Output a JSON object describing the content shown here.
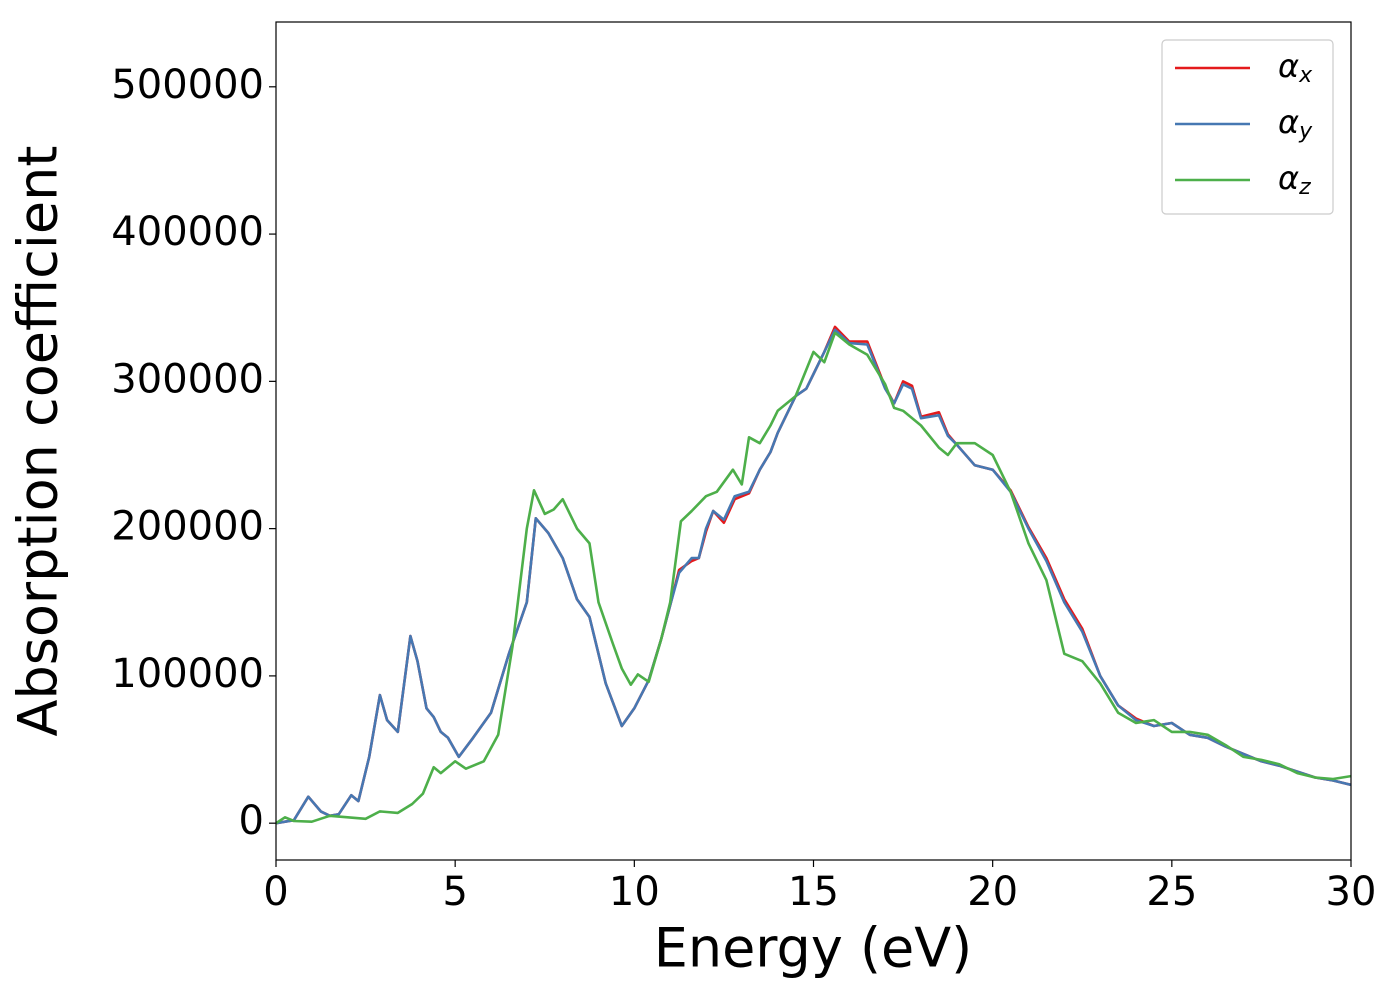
{
  "chart_data": {
    "type": "line",
    "xlabel": "Energy (eV)",
    "ylabel": "Absorption coefficient",
    "xlim": [
      0,
      30
    ],
    "ylim": [
      -25000,
      544000
    ],
    "xticks": [
      0,
      5,
      10,
      15,
      20,
      25,
      30
    ],
    "yticks": [
      0,
      100000,
      200000,
      300000,
      400000,
      500000
    ],
    "legend": "upper right",
    "series": [
      {
        "name": "αx",
        "color": "#e41a1c",
        "x": [
          0,
          0.5,
          0.9,
          1.25,
          1.5,
          1.75,
          2.1,
          2.3,
          2.6,
          2.9,
          3.1,
          3.4,
          3.75,
          3.95,
          4.2,
          4.4,
          4.6,
          4.8,
          5.1,
          5.5,
          6.0,
          6.5,
          7.0,
          7.25,
          7.6,
          8.0,
          8.4,
          8.75,
          9.2,
          9.65,
          10.0,
          10.4,
          10.75,
          11.0,
          11.25,
          11.6,
          11.8,
          12.0,
          12.2,
          12.5,
          12.8,
          13.2,
          13.5,
          13.8,
          14.0,
          14.5,
          14.8,
          15.0,
          15.3,
          15.6,
          16.0,
          16.5,
          17.0,
          17.25,
          17.5,
          17.75,
          18.0,
          18.5,
          18.75,
          19.0,
          19.5,
          20.0,
          20.5,
          21.0,
          21.5,
          22.0,
          22.5,
          23.0,
          23.5,
          24.0,
          24.5,
          25.0,
          25.5,
          26.0,
          26.5,
          27.0,
          27.5,
          28.0,
          28.5,
          29.0,
          29.5,
          30.0
        ],
        "values": [
          0,
          2000,
          18000,
          8000,
          5000,
          6000,
          19000,
          15000,
          45000,
          87000,
          70000,
          62000,
          127000,
          110000,
          78000,
          72000,
          62000,
          58000,
          45000,
          58000,
          75000,
          115000,
          150000,
          207000,
          197000,
          180000,
          152000,
          140000,
          95000,
          66000,
          78000,
          97000,
          125000,
          148000,
          172000,
          178000,
          180000,
          198000,
          212000,
          204000,
          220000,
          224000,
          240000,
          252000,
          265000,
          290000,
          295000,
          305000,
          320000,
          337000,
          327000,
          327000,
          296000,
          285000,
          300000,
          297000,
          276000,
          279000,
          264000,
          257000,
          243000,
          240000,
          226000,
          201000,
          180000,
          152000,
          132000,
          100000,
          80000,
          71000,
          66000,
          68000,
          60000,
          58000,
          52000,
          47000,
          42000,
          39000,
          35000,
          31000,
          29000,
          26000
        ]
      },
      {
        "name": "αy",
        "color": "#4678b2",
        "x": [
          0,
          0.5,
          0.9,
          1.25,
          1.5,
          1.75,
          2.1,
          2.3,
          2.6,
          2.9,
          3.1,
          3.4,
          3.75,
          3.95,
          4.2,
          4.4,
          4.6,
          4.8,
          5.1,
          5.5,
          6.0,
          6.5,
          7.0,
          7.25,
          7.6,
          8.0,
          8.4,
          8.75,
          9.2,
          9.65,
          10.0,
          10.4,
          10.75,
          11.0,
          11.25,
          11.6,
          11.8,
          12.0,
          12.2,
          12.5,
          12.8,
          13.2,
          13.5,
          13.8,
          14.0,
          14.5,
          14.8,
          15.0,
          15.3,
          15.6,
          16.0,
          16.5,
          17.0,
          17.25,
          17.5,
          17.75,
          18.0,
          18.5,
          18.75,
          19.0,
          19.5,
          20.0,
          20.5,
          21.0,
          21.5,
          22.0,
          22.5,
          23.0,
          23.5,
          24.0,
          24.5,
          25.0,
          25.5,
          26.0,
          26.5,
          27.0,
          27.5,
          28.0,
          28.5,
          29.0,
          29.5,
          30.0
        ],
        "values": [
          0,
          2000,
          18000,
          8000,
          5000,
          6000,
          19000,
          15000,
          45000,
          87000,
          70000,
          62000,
          127000,
          110000,
          78000,
          72000,
          62000,
          58000,
          45000,
          58000,
          75000,
          115000,
          150000,
          207000,
          197000,
          180000,
          152000,
          140000,
          95000,
          66000,
          78000,
          97000,
          125000,
          148000,
          170000,
          180000,
          180000,
          200000,
          212000,
          206000,
          222000,
          225000,
          240000,
          252000,
          265000,
          290000,
          295000,
          305000,
          320000,
          335000,
          326000,
          325000,
          295000,
          285000,
          298000,
          295000,
          275000,
          277000,
          263000,
          257000,
          243000,
          240000,
          225000,
          200000,
          178000,
          150000,
          130000,
          100000,
          80000,
          70000,
          66000,
          68000,
          60000,
          58000,
          52000,
          47000,
          42000,
          39000,
          35000,
          31000,
          29000,
          26000
        ]
      },
      {
        "name": "αz",
        "color": "#4daf4a",
        "x": [
          0,
          0.25,
          0.5,
          1.0,
          1.5,
          2.0,
          2.5,
          2.9,
          3.4,
          3.8,
          4.1,
          4.4,
          4.6,
          5.0,
          5.3,
          5.8,
          6.2,
          6.6,
          7.0,
          7.2,
          7.5,
          7.75,
          8.0,
          8.4,
          8.75,
          9.0,
          9.4,
          9.65,
          9.9,
          10.1,
          10.4,
          10.75,
          11.0,
          11.3,
          11.6,
          12.0,
          12.3,
          12.75,
          13.0,
          13.2,
          13.5,
          13.8,
          14.0,
          14.5,
          15.0,
          15.3,
          15.6,
          16.0,
          16.5,
          17.0,
          17.25,
          17.5,
          18.0,
          18.5,
          18.75,
          19.0,
          19.5,
          20.0,
          20.5,
          21.0,
          21.5,
          22.0,
          22.5,
          23.0,
          23.5,
          24.0,
          24.5,
          25.0,
          25.5,
          26.0,
          26.5,
          27.0,
          27.5,
          28.0,
          28.5,
          29.0,
          29.5,
          30.0
        ],
        "values": [
          0,
          4000,
          1500,
          1000,
          5000,
          4000,
          3000,
          8000,
          7000,
          13000,
          20000,
          38000,
          34000,
          42000,
          37000,
          42000,
          60000,
          120000,
          200000,
          226000,
          210000,
          213000,
          220000,
          200000,
          190000,
          150000,
          122000,
          105000,
          94000,
          101000,
          96000,
          125000,
          150000,
          205000,
          212000,
          222000,
          225000,
          240000,
          230000,
          262000,
          258000,
          270000,
          280000,
          290000,
          320000,
          313000,
          333000,
          325000,
          318000,
          298000,
          282000,
          280000,
          270000,
          255000,
          250000,
          258000,
          258000,
          250000,
          225000,
          190000,
          165000,
          115000,
          110000,
          95000,
          75000,
          68000,
          70000,
          62000,
          62000,
          60000,
          53000,
          45000,
          43000,
          40000,
          34000,
          31000,
          30000,
          32000
        ]
      }
    ]
  }
}
